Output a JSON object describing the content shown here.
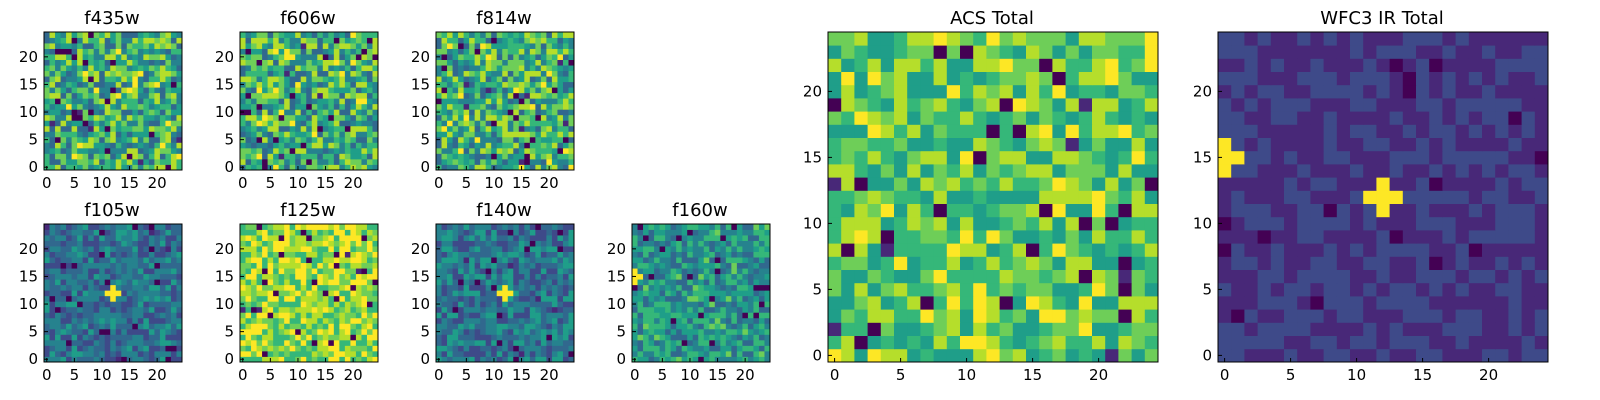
{
  "figure": {
    "colormap": [
      "#440154",
      "#482878",
      "#3e4a89",
      "#31688e",
      "#26828e",
      "#1f9e89",
      "#35b779",
      "#6ece58",
      "#b5de2b",
      "#fde725"
    ]
  },
  "chart_data": [
    {
      "type": "heatmap",
      "title": "f435w",
      "rows": 25,
      "cols": 25,
      "xticks": [
        0,
        5,
        10,
        15,
        20
      ],
      "yticks": [
        0,
        5,
        10,
        15,
        20
      ],
      "background": 0.62,
      "spread": 0.3,
      "blobs": [],
      "colormap": "viridis",
      "seed": 11
    },
    {
      "type": "heatmap",
      "title": "f606w",
      "rows": 25,
      "cols": 25,
      "xticks": [
        0,
        5,
        10,
        15,
        20
      ],
      "yticks": [
        0,
        5,
        10,
        15,
        20
      ],
      "background": 0.62,
      "spread": 0.3,
      "blobs": [],
      "colormap": "viridis",
      "seed": 23
    },
    {
      "type": "heatmap",
      "title": "f814w",
      "rows": 25,
      "cols": 25,
      "xticks": [
        0,
        5,
        10,
        15,
        20
      ],
      "yticks": [
        0,
        5,
        10,
        15,
        20
      ],
      "background": 0.62,
      "spread": 0.3,
      "blobs": [],
      "colormap": "viridis",
      "seed": 37
    },
    {
      "type": "heatmap",
      "title": "f105w",
      "rows": 25,
      "cols": 25,
      "xticks": [
        0,
        5,
        10,
        15,
        20
      ],
      "yticks": [
        0,
        5,
        10,
        15,
        20
      ],
      "background": 0.38,
      "spread": 0.16,
      "blobs": [
        {
          "x": 12,
          "y": 12,
          "r": 1,
          "v": 1.0
        }
      ],
      "colormap": "viridis",
      "seed": 41
    },
    {
      "type": "heatmap",
      "title": "f125w",
      "rows": 25,
      "cols": 25,
      "xticks": [
        0,
        5,
        10,
        15,
        20
      ],
      "yticks": [
        0,
        5,
        10,
        15,
        20
      ],
      "background": 0.8,
      "spread": 0.2,
      "blobs": [],
      "colormap": "viridis",
      "seed": 53
    },
    {
      "type": "heatmap",
      "title": "f140w",
      "rows": 25,
      "cols": 25,
      "xticks": [
        0,
        5,
        10,
        15,
        20
      ],
      "yticks": [
        0,
        5,
        10,
        15,
        20
      ],
      "background": 0.4,
      "spread": 0.18,
      "blobs": [
        {
          "x": 12,
          "y": 12,
          "r": 1,
          "v": 1.0
        }
      ],
      "colormap": "viridis",
      "seed": 67
    },
    {
      "type": "heatmap",
      "title": "f160w",
      "rows": 25,
      "cols": 25,
      "xticks": [
        0,
        5,
        10,
        15,
        20
      ],
      "yticks": [
        0,
        5,
        10,
        15,
        20
      ],
      "background": 0.52,
      "spread": 0.2,
      "blobs": [
        {
          "x": 0,
          "y": 15,
          "r": 1,
          "v": 1.0
        }
      ],
      "colormap": "viridis",
      "seed": 71
    },
    {
      "type": "heatmap",
      "title": "ACS Total",
      "rows": 25,
      "cols": 25,
      "xticks": [
        0,
        5,
        10,
        15,
        20
      ],
      "yticks": [
        0,
        5,
        10,
        15,
        20
      ],
      "background": 0.72,
      "spread": 0.22,
      "blobs": [],
      "colormap": "viridis",
      "seed": 89
    },
    {
      "type": "heatmap",
      "title": "WFC3 IR Total",
      "rows": 25,
      "cols": 25,
      "xticks": [
        0,
        5,
        10,
        15,
        20
      ],
      "yticks": [
        0,
        5,
        10,
        15,
        20
      ],
      "background": 0.2,
      "spread": 0.08,
      "blobs": [
        {
          "x": 12,
          "y": 12,
          "r": 1,
          "v": 1.0
        },
        {
          "x": 0,
          "y": 15,
          "r": 1,
          "v": 1.0
        }
      ],
      "colormap": "viridis",
      "seed": 97
    }
  ]
}
